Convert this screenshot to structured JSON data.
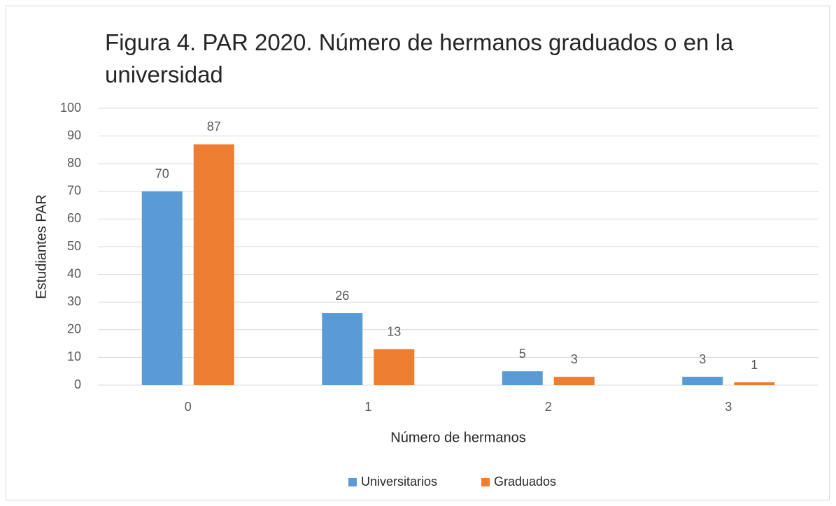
{
  "chart_data": {
    "type": "bar",
    "title": "Figura 4. PAR 2020. Número de hermanos graduados o en la universidad",
    "x_label": "Número de hermanos",
    "y_label": "Estudiantes PAR",
    "categories": [
      "0",
      "1",
      "2",
      "3"
    ],
    "series": [
      {
        "name": "Universitarios",
        "color": "#5b9bd5",
        "values": [
          70,
          26,
          5,
          3
        ]
      },
      {
        "name": "Graduados",
        "color": "#ed7d31",
        "values": [
          87,
          13,
          3,
          1
        ]
      }
    ],
    "ylim": [
      0,
      100
    ],
    "yticks": [
      0,
      10,
      20,
      30,
      40,
      50,
      60,
      70,
      80,
      90,
      100
    ],
    "grid": true,
    "legend": "bottom"
  }
}
